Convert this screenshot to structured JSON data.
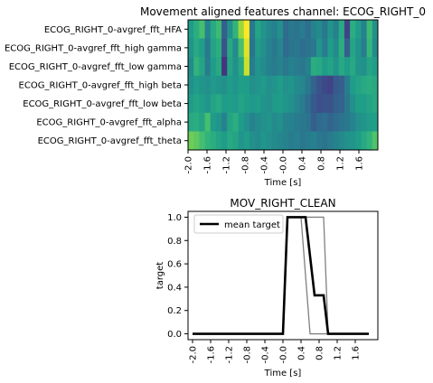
{
  "chart_data": [
    {
      "type": "heatmap",
      "title": "Movement aligned features channel: ECOG_RIGHT_0",
      "xlabel": "Time [s]",
      "ylabel": "",
      "rows": [
        "ECOG_RIGHT_0-avgref_fft_HFA",
        "ECOG_RIGHT_0-avgref_fft_high gamma",
        "ECOG_RIGHT_0-avgref_fft_low gamma",
        "ECOG_RIGHT_0-avgref_fft_high beta",
        "ECOG_RIGHT_0-avgref_fft_low beta",
        "ECOG_RIGHT_0-avgref_fft_alpha",
        "ECOG_RIGHT_0-avgref_fft_theta"
      ],
      "xticks": [
        "-2.0",
        "-1.6",
        "-1.2",
        "-0.8",
        "-0.4",
        "-0.0",
        "0.4",
        "0.8",
        "1.2",
        "1.6"
      ],
      "xlim": [
        -2.0,
        2.0
      ],
      "colormap": "viridis",
      "values": [
        [
          0.55,
          0.62,
          0.7,
          0.45,
          0.6,
          0.68,
          0.3,
          0.5,
          0.65,
          0.85,
          1.0,
          0.4,
          0.58,
          0.52,
          0.47,
          0.44,
          0.5,
          0.35,
          0.4,
          0.38,
          0.42,
          0.36,
          0.45,
          0.48,
          0.4,
          0.52,
          0.44,
          0.6,
          0.2,
          0.62,
          0.55,
          0.45,
          0.68,
          0.5
        ],
        [
          0.52,
          0.6,
          0.55,
          0.4,
          0.58,
          0.62,
          0.25,
          0.6,
          0.48,
          0.7,
          0.95,
          0.38,
          0.55,
          0.5,
          0.45,
          0.4,
          0.46,
          0.34,
          0.38,
          0.4,
          0.36,
          0.38,
          0.4,
          0.52,
          0.42,
          0.55,
          0.48,
          0.62,
          0.3,
          0.58,
          0.52,
          0.42,
          0.66,
          0.48
        ],
        [
          0.48,
          0.65,
          0.58,
          0.42,
          0.55,
          0.6,
          0.15,
          0.58,
          0.5,
          0.6,
          0.92,
          0.42,
          0.52,
          0.48,
          0.44,
          0.42,
          0.45,
          0.4,
          0.44,
          0.42,
          0.4,
          0.44,
          0.62,
          0.6,
          0.55,
          0.58,
          0.52,
          0.6,
          0.55,
          0.6,
          0.52,
          0.5,
          0.58,
          0.55
        ],
        [
          0.5,
          0.55,
          0.52,
          0.5,
          0.54,
          0.52,
          0.5,
          0.55,
          0.52,
          0.56,
          0.55,
          0.5,
          0.52,
          0.54,
          0.5,
          0.52,
          0.55,
          0.5,
          0.52,
          0.48,
          0.46,
          0.4,
          0.32,
          0.25,
          0.22,
          0.2,
          0.28,
          0.3,
          0.42,
          0.55,
          0.58,
          0.6,
          0.62,
          0.6
        ],
        [
          0.55,
          0.58,
          0.56,
          0.52,
          0.58,
          0.6,
          0.55,
          0.56,
          0.54,
          0.58,
          0.56,
          0.54,
          0.55,
          0.52,
          0.5,
          0.54,
          0.55,
          0.52,
          0.5,
          0.46,
          0.42,
          0.35,
          0.28,
          0.24,
          0.26,
          0.25,
          0.3,
          0.32,
          0.4,
          0.5,
          0.56,
          0.55,
          0.58,
          0.6
        ],
        [
          0.6,
          0.62,
          0.58,
          0.7,
          0.55,
          0.52,
          0.45,
          0.58,
          0.62,
          0.55,
          0.5,
          0.45,
          0.48,
          0.5,
          0.52,
          0.48,
          0.5,
          0.45,
          0.44,
          0.42,
          0.4,
          0.38,
          0.3,
          0.34,
          0.36,
          0.32,
          0.35,
          0.38,
          0.4,
          0.45,
          0.5,
          0.52,
          0.55,
          0.56
        ],
        [
          0.78,
          0.75,
          0.7,
          0.65,
          0.62,
          0.58,
          0.55,
          0.6,
          0.58,
          0.52,
          0.55,
          0.5,
          0.48,
          0.52,
          0.5,
          0.48,
          0.46,
          0.45,
          0.42,
          0.44,
          0.4,
          0.42,
          0.44,
          0.4,
          0.38,
          0.42,
          0.45,
          0.48,
          0.5,
          0.52,
          0.55,
          0.6,
          0.65,
          0.72
        ]
      ]
    },
    {
      "type": "line",
      "title": "MOV_RIGHT_CLEAN",
      "xlabel": "Time [s]",
      "ylabel": "target",
      "xlim": [
        -2.1,
        2.1
      ],
      "ylim": [
        -0.05,
        1.05
      ],
      "xticks": [
        "-2.0",
        "-1.6",
        "-1.2",
        "-0.8",
        "-0.4",
        "-0.0",
        "0.4",
        "0.8",
        "1.2",
        "1.6"
      ],
      "yticks": [
        "0.0",
        "0.2",
        "0.4",
        "0.6",
        "0.8",
        "1.0"
      ],
      "legend": "top-left",
      "series": [
        {
          "name": "mean target",
          "color": "#000000",
          "x": [
            -2.0,
            0.0,
            0.1,
            0.5,
            0.7,
            0.9,
            1.0,
            1.9
          ],
          "y": [
            0.0,
            0.0,
            1.0,
            1.0,
            0.33,
            0.33,
            0.0,
            0.0
          ]
        },
        {
          "name": "",
          "color": "#808080",
          "x": [
            -2.0,
            0.0,
            0.1,
            0.4,
            0.6,
            1.9
          ],
          "y": [
            0.0,
            0.0,
            1.0,
            1.0,
            0.0,
            0.0
          ]
        },
        {
          "name": "",
          "color": "#808080",
          "x": [
            -2.0,
            0.0,
            0.1,
            0.9,
            1.0,
            1.9
          ],
          "y": [
            0.0,
            0.0,
            1.0,
            1.0,
            0.0,
            0.0
          ]
        }
      ]
    }
  ]
}
